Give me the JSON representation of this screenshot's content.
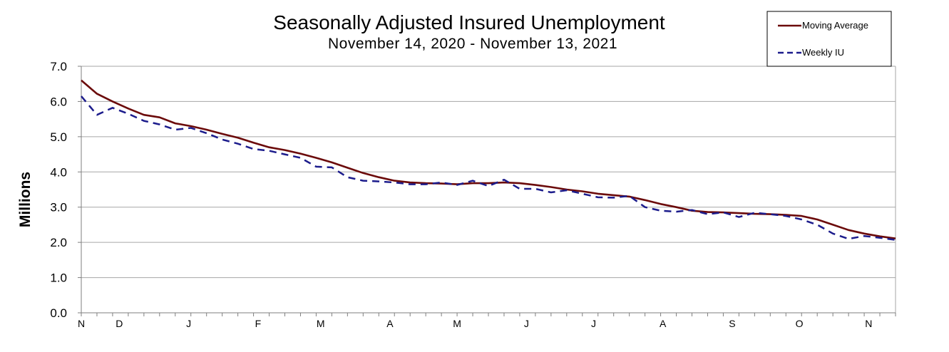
{
  "chart_data": {
    "type": "line",
    "title": "Seasonally Adjusted Insured Unemployment",
    "subtitle": "November 14, 2020 - November 13, 2021",
    "ylabel": "Millions",
    "ylim": [
      0,
      7
    ],
    "yticks": [
      "0.0",
      "1.0",
      "2.0",
      "3.0",
      "4.0",
      "5.0",
      "6.0",
      "7.0"
    ],
    "xticks": [
      "N",
      "D",
      "J",
      "F",
      "M",
      "A",
      "M",
      "J",
      "J",
      "A",
      "S",
      "O",
      "N"
    ],
    "x": [
      "2020-11-14",
      "2020-11-21",
      "2020-11-28",
      "2020-12-05",
      "2020-12-12",
      "2020-12-19",
      "2020-12-26",
      "2021-01-02",
      "2021-01-09",
      "2021-01-16",
      "2021-01-23",
      "2021-01-30",
      "2021-02-06",
      "2021-02-13",
      "2021-02-20",
      "2021-02-27",
      "2021-03-06",
      "2021-03-13",
      "2021-03-20",
      "2021-03-27",
      "2021-04-03",
      "2021-04-10",
      "2021-04-17",
      "2021-04-24",
      "2021-05-01",
      "2021-05-08",
      "2021-05-15",
      "2021-05-22",
      "2021-05-29",
      "2021-06-05",
      "2021-06-12",
      "2021-06-19",
      "2021-06-26",
      "2021-07-03",
      "2021-07-10",
      "2021-07-17",
      "2021-07-24",
      "2021-07-31",
      "2021-08-07",
      "2021-08-14",
      "2021-08-21",
      "2021-08-28",
      "2021-09-04",
      "2021-09-11",
      "2021-09-18",
      "2021-09-25",
      "2021-10-02",
      "2021-10-09",
      "2021-10-16",
      "2021-10-23",
      "2021-10-30",
      "2021-11-06",
      "2021-11-13"
    ],
    "grid": true,
    "legend": "top-right",
    "series": [
      {
        "name": "Moving Average",
        "color": "#6b0a0a",
        "style": "solid",
        "values": [
          6.6,
          6.22,
          6.0,
          5.8,
          5.62,
          5.55,
          5.38,
          5.3,
          5.2,
          5.08,
          4.97,
          4.83,
          4.7,
          4.62,
          4.52,
          4.4,
          4.27,
          4.12,
          3.97,
          3.85,
          3.75,
          3.7,
          3.68,
          3.67,
          3.65,
          3.68,
          3.68,
          3.7,
          3.68,
          3.63,
          3.57,
          3.5,
          3.45,
          3.38,
          3.34,
          3.3,
          3.2,
          3.09,
          3.0,
          2.9,
          2.86,
          2.85,
          2.83,
          2.81,
          2.8,
          2.78,
          2.75,
          2.65,
          2.5,
          2.35,
          2.25,
          2.17,
          2.11
        ]
      },
      {
        "name": "Weekly IU",
        "color": "#1c1c8c",
        "style": "dashed",
        "values": [
          6.15,
          5.62,
          5.82,
          5.65,
          5.45,
          5.35,
          5.2,
          5.25,
          5.1,
          4.92,
          4.8,
          4.65,
          4.6,
          4.5,
          4.4,
          4.15,
          4.13,
          3.85,
          3.75,
          3.73,
          3.7,
          3.65,
          3.65,
          3.7,
          3.63,
          3.75,
          3.6,
          3.78,
          3.52,
          3.52,
          3.42,
          3.48,
          3.38,
          3.28,
          3.27,
          3.32,
          3.0,
          2.9,
          2.87,
          2.92,
          2.8,
          2.85,
          2.72,
          2.84,
          2.8,
          2.75,
          2.65,
          2.5,
          2.25,
          2.1,
          2.18,
          2.13,
          2.07
        ]
      }
    ]
  }
}
